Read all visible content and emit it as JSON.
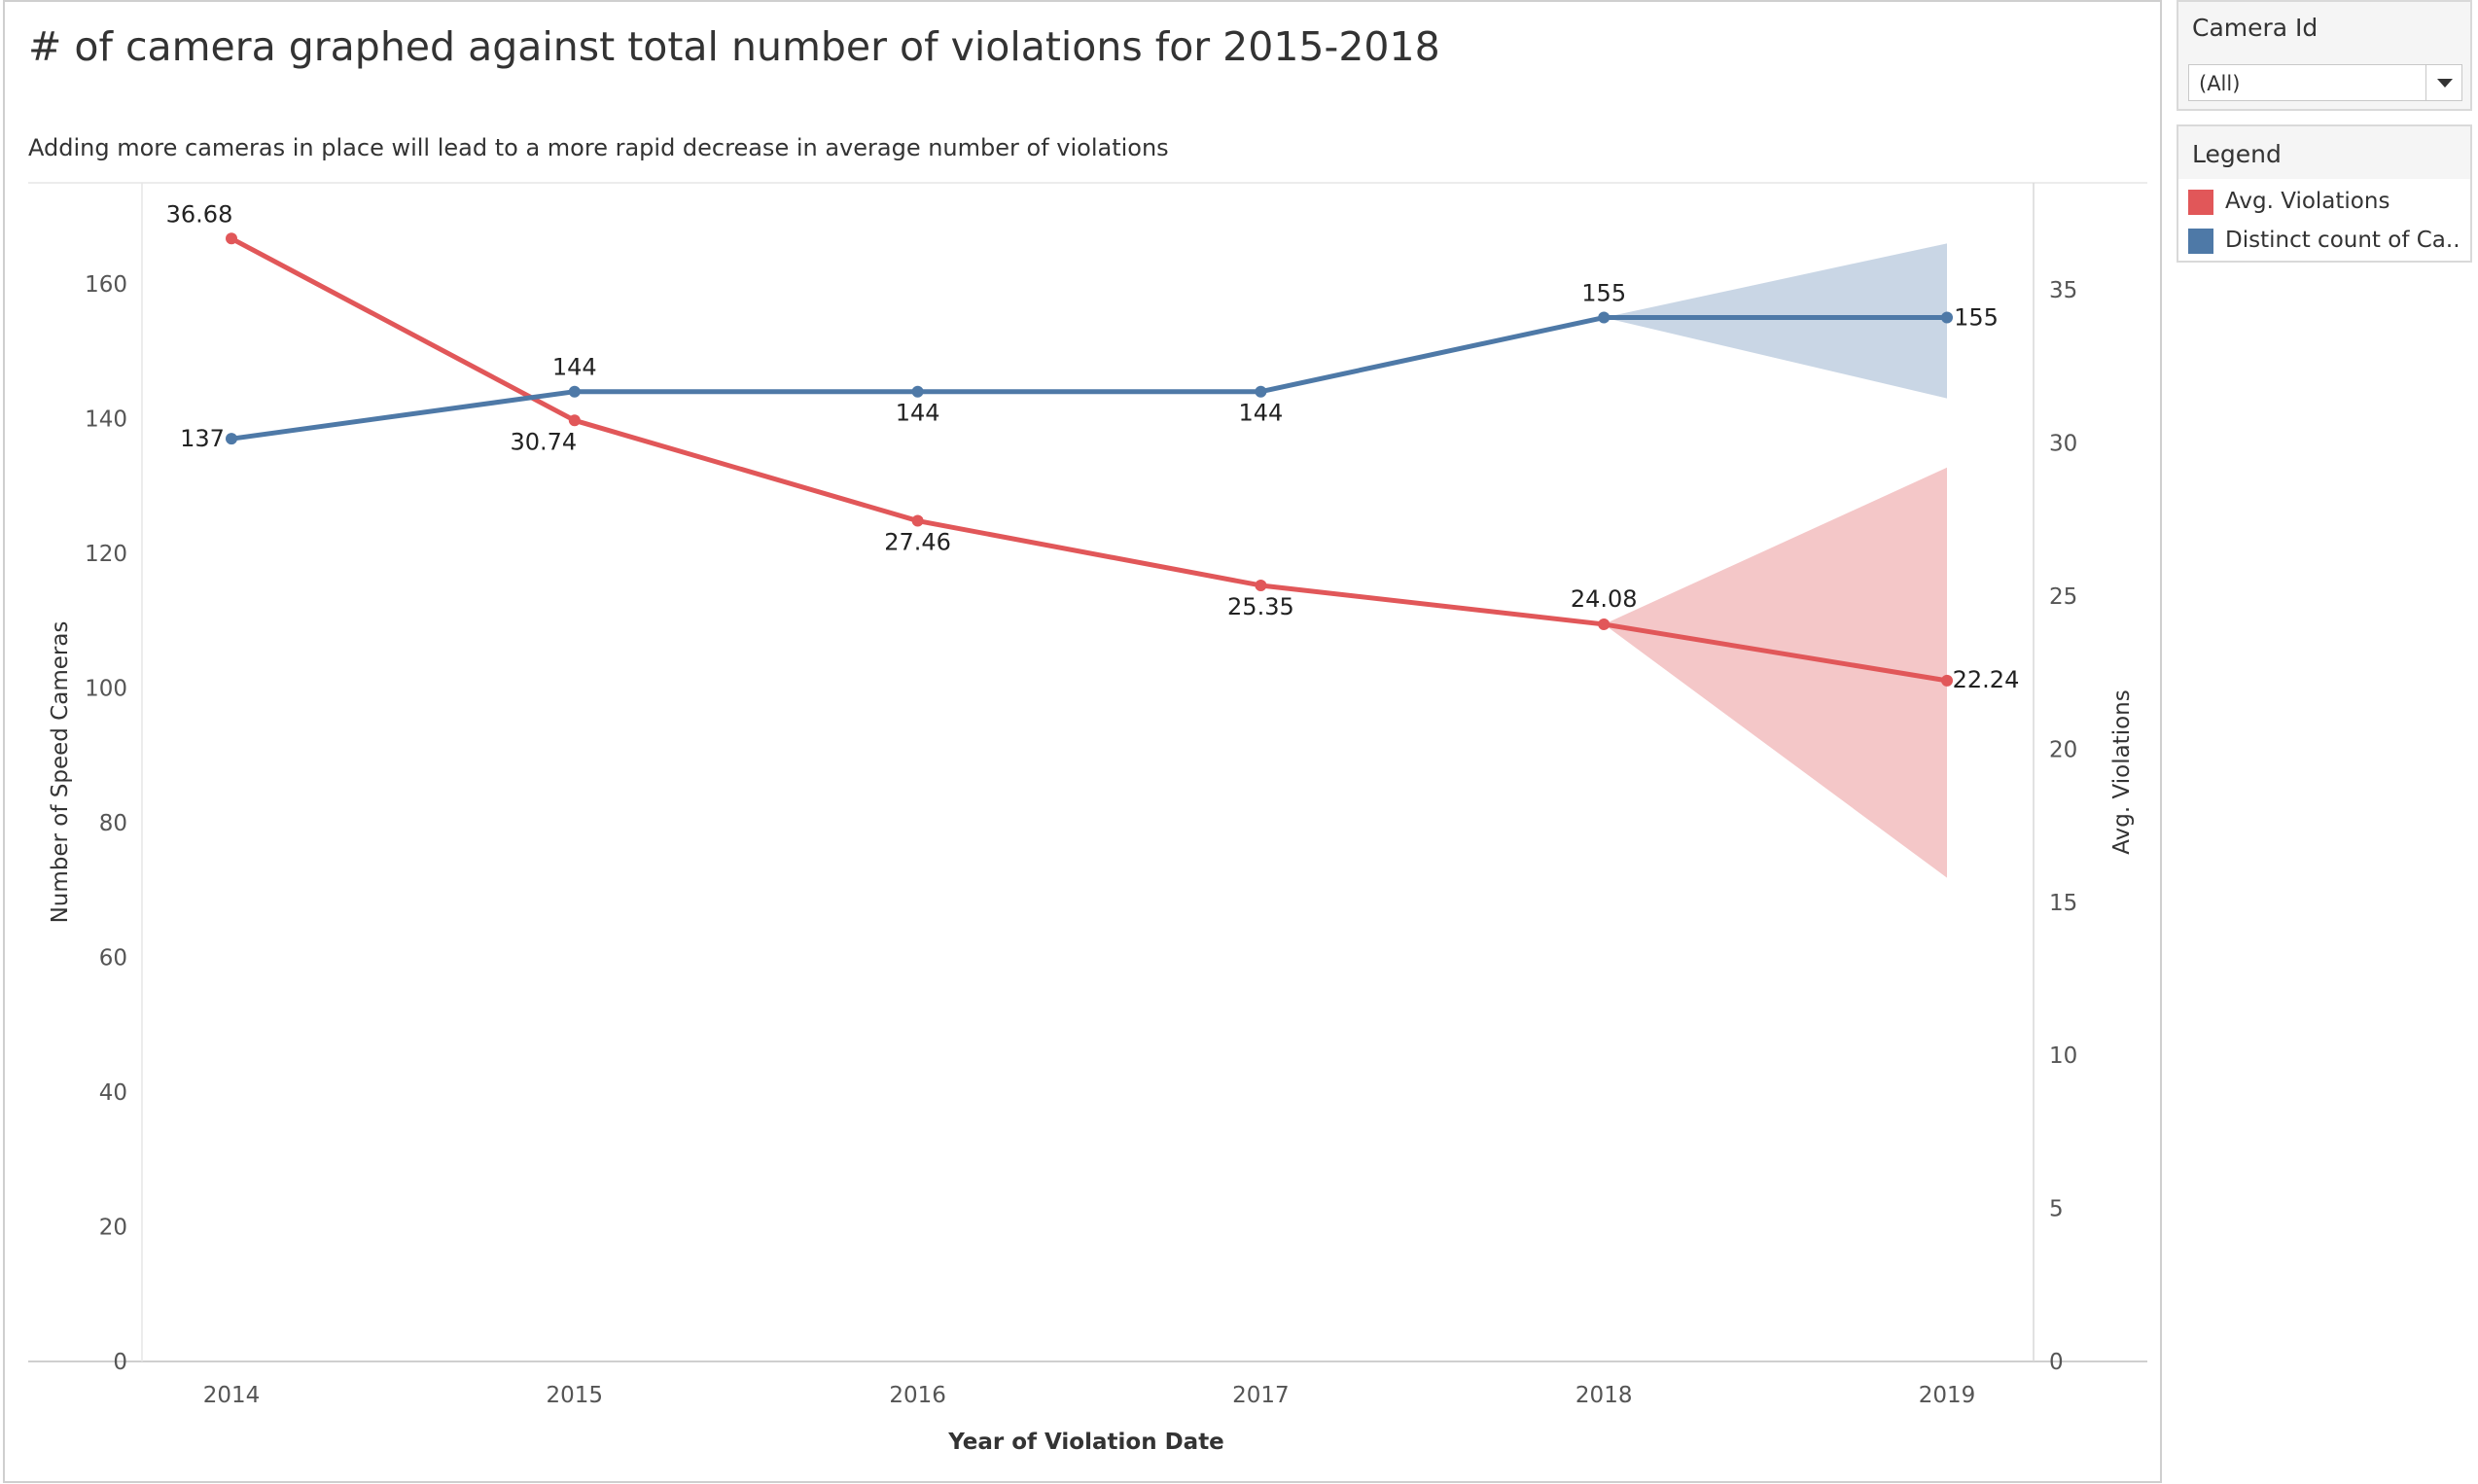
{
  "worksheet": {
    "title": "# of camera graphed against total number of violations for 2015-2018",
    "caption": "Adding more cameras in place will lead to a more rapid decrease in average number of violations"
  },
  "filter": {
    "label": "Camera Id",
    "selected": "(All)"
  },
  "legend": {
    "title": "Legend",
    "items": [
      {
        "label": "Avg. Violations",
        "color": "#e15759"
      },
      {
        "label": "Distinct count of Ca..",
        "color": "#4e79a7"
      }
    ]
  },
  "chart_data": {
    "type": "line",
    "x": [
      "2014",
      "2015",
      "2016",
      "2017",
      "2018",
      "2019"
    ],
    "xlabel": "Year of Violation Date",
    "y_left_label": "Number of Speed Cameras",
    "y_right_label": "Avg. Violations",
    "y_left_ticks": [
      "0",
      "20",
      "40",
      "60",
      "80",
      "100",
      "120",
      "140",
      "160"
    ],
    "y_right_ticks": [
      "0",
      "5",
      "10",
      "15",
      "20",
      "25",
      "30",
      "35"
    ],
    "y_left_range": [
      0,
      175
    ],
    "y_right_range": [
      0,
      38.5
    ],
    "grid": false,
    "series": [
      {
        "name": "Avg. Violations",
        "axis": "right",
        "color": "#e15759",
        "band_color": "#f4c7c8",
        "values": [
          36.68,
          30.74,
          27.46,
          25.35,
          24.08,
          22.24
        ],
        "labels": [
          "36.68",
          "30.74",
          "27.46",
          "25.35",
          "24.08",
          "22.24"
        ],
        "forecast_band": {
          "x": [
            "2018",
            "2019"
          ],
          "low": [
            24.08,
            15.8
          ],
          "high": [
            24.08,
            29.2
          ]
        }
      },
      {
        "name": "Distinct count of Camera Id",
        "axis": "left",
        "color": "#4e79a7",
        "band_color": "#c9d6e5",
        "values": [
          137,
          144,
          144,
          144,
          155,
          155
        ],
        "labels": [
          "137",
          "144",
          "144",
          "144",
          "155",
          "155"
        ],
        "forecast_band": {
          "x": [
            "2018",
            "2019"
          ],
          "low": [
            155,
            143
          ],
          "high": [
            155,
            166
          ]
        }
      }
    ]
  }
}
